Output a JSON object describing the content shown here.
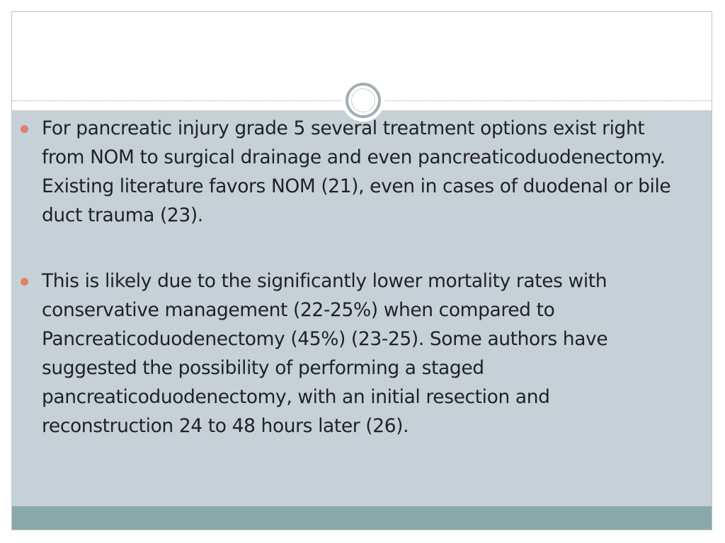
{
  "slide": {
    "bullets": [
      {
        "text": "For pancreatic injury grade 5 several treatment options exist right from NOM to surgical drainage and even pancreaticoduodenectomy. Existing literature favors NOM (21), even in cases of duodenal or bile duct trauma (23)."
      },
      {
        "text": "This is likely due to the significantly lower mortality rates with conservative management (22-25%) when compared to Pancreaticoduodenectomy (45%) (23-25). Some authors have suggested the possibility of performing a staged pancreaticoduodenectomy, with an initial resection and reconstruction 24 to 48 hours later (26)."
      }
    ]
  },
  "colors": {
    "content_background": "#c5d1d6",
    "footer_bar": "#8aa8aa",
    "bullet_accent": "#e07f6a",
    "ring": "#9fb0b2",
    "text": "#222222"
  }
}
